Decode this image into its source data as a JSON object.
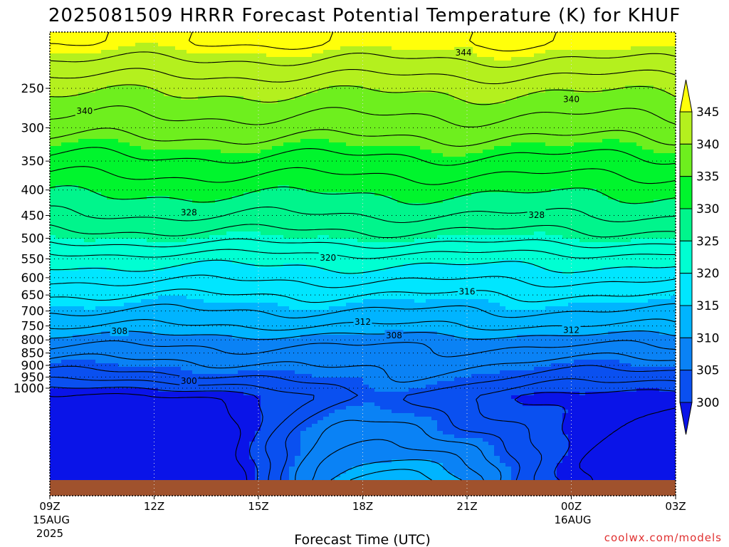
{
  "chart_data": {
    "type": "contour",
    "title": "2025081509 HRRR Forecast Potential Temperature (K) for KHUF",
    "xlabel": "Forecast Time (UTC)",
    "ylabel": "",
    "x_ticks": [
      {
        "label": "09Z",
        "sub1": "15AUG",
        "sub2": "2025",
        "hours": 0
      },
      {
        "label": "12Z",
        "sub1": "",
        "sub2": "",
        "hours": 3
      },
      {
        "label": "15Z",
        "sub1": "",
        "sub2": "",
        "hours": 6
      },
      {
        "label": "18Z",
        "sub1": "",
        "sub2": "",
        "hours": 9
      },
      {
        "label": "21Z",
        "sub1": "",
        "sub2": "",
        "hours": 12
      },
      {
        "label": "00Z",
        "sub1": "16AUG",
        "sub2": "",
        "hours": 15
      },
      {
        "label": "03Z",
        "sub1": "",
        "sub2": "",
        "hours": 18
      }
    ],
    "x_range_hours": [
      0,
      18
    ],
    "y_ticks": [
      250,
      300,
      350,
      400,
      450,
      500,
      550,
      600,
      650,
      700,
      750,
      800,
      850,
      900,
      950,
      1000
    ],
    "y_scale": "log",
    "y_range_hPa": [
      1038,
      203
    ],
    "colorbar_levels": [
      300,
      305,
      310,
      315,
      320,
      325,
      330,
      335,
      340,
      345
    ],
    "colorbar_colors": [
      "#0a14e8",
      "#0a50f0",
      "#0a82f5",
      "#00b4ff",
      "#00e6ff",
      "#00ffd2",
      "#00f58c",
      "#00f52d",
      "#6eef1e",
      "#b4f01e",
      "#ffff0a"
    ],
    "ground_color": "#a0522d",
    "contour_interval_K": 2,
    "contour_labels": [
      {
        "text": "344",
        "t_hours": 11.9,
        "p_hPa": 212
      },
      {
        "text": "340",
        "t_hours": 1.0,
        "p_hPa": 278
      },
      {
        "text": "340",
        "t_hours": 15.0,
        "p_hPa": 263
      },
      {
        "text": "328",
        "t_hours": 4.0,
        "p_hPa": 444
      },
      {
        "text": "328",
        "t_hours": 14.0,
        "p_hPa": 449
      },
      {
        "text": "320",
        "t_hours": 8.0,
        "p_hPa": 547
      },
      {
        "text": "316",
        "t_hours": 12.0,
        "p_hPa": 640
      },
      {
        "text": "312",
        "t_hours": 9.0,
        "p_hPa": 736
      },
      {
        "text": "312",
        "t_hours": 15.0,
        "p_hPa": 764
      },
      {
        "text": "308",
        "t_hours": 2.0,
        "p_hPa": 768
      },
      {
        "text": "308",
        "t_hours": 9.9,
        "p_hPa": 784
      },
      {
        "text": "300",
        "t_hours": 4.0,
        "p_hPa": 967
      }
    ],
    "grid": true
  },
  "credit": "coolwx.com/models"
}
